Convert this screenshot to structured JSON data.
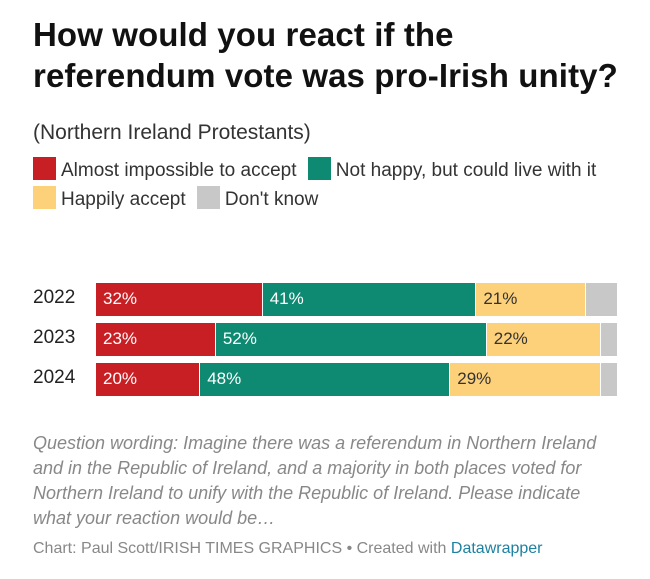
{
  "title": "How would you react if the referendum vote was pro-Irish unity?",
  "subtitle": "(Northern Ireland Protestants)",
  "colors": {
    "almost_impossible": "#c81f24",
    "not_happy": "#0e8a72",
    "happily": "#fdd07a",
    "dont_know": "#c8c8c8"
  },
  "legend": [
    {
      "label": "Almost impossible to accept",
      "color": "#c81f24"
    },
    {
      "label": "Not happy, but could live with it",
      "color": "#0e8a72"
    },
    {
      "label": "Happily accept",
      "color": "#fdd07a"
    },
    {
      "label": "Don't know",
      "color": "#c8c8c8"
    }
  ],
  "chart_data": {
    "type": "bar",
    "orientation": "horizontal-stacked-100",
    "categories": [
      "2022",
      "2023",
      "2024"
    ],
    "series": [
      {
        "name": "Almost impossible to accept",
        "values": [
          32,
          23,
          20
        ],
        "labels": [
          "32%",
          "23%",
          "20%"
        ]
      },
      {
        "name": "Not happy, but could live with it",
        "values": [
          41,
          52,
          48
        ],
        "labels": [
          "41%",
          "52%",
          "48%"
        ]
      },
      {
        "name": "Happily accept",
        "values": [
          21,
          22,
          29
        ],
        "labels": [
          "21%",
          "22%",
          "29%"
        ]
      },
      {
        "name": "Don't know",
        "values": [
          6,
          3,
          3
        ],
        "labels": [
          "",
          "",
          ""
        ]
      }
    ],
    "xlim": [
      0,
      100
    ]
  },
  "note": "Question wording: Imagine there was a referendum in Northern Ireland and in the Republic of Ireland, and a majority in both places voted for Northern Ireland to unify with the Republic of Ireland. Please indicate what your reaction would be…",
  "credit": {
    "prefix": "Chart: Paul Scott/IRISH TIMES GRAPHICS • Created with ",
    "link": "Datawrapper"
  }
}
